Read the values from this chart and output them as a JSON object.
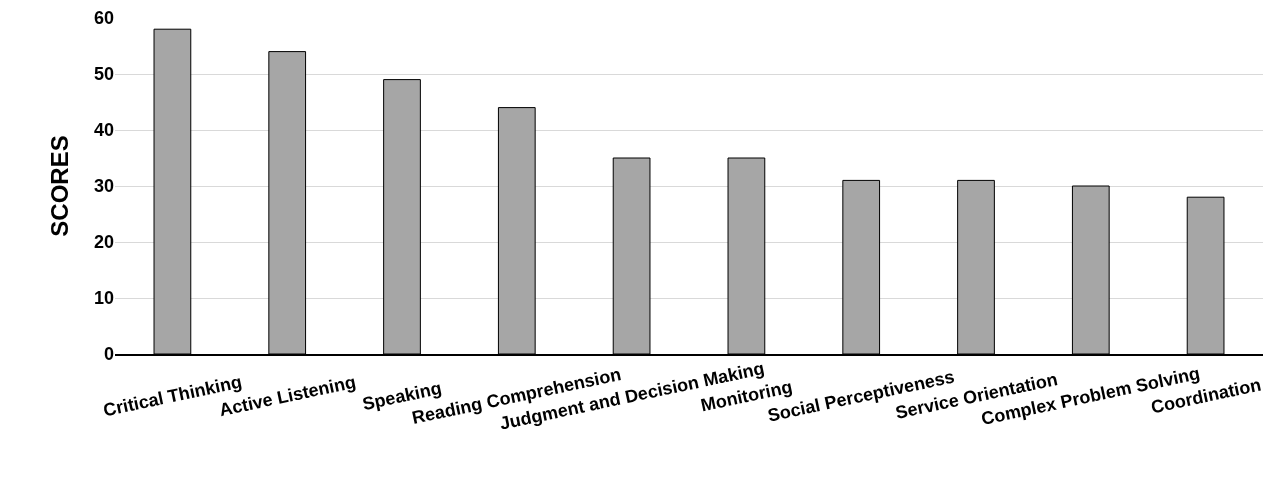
{
  "chart_data": {
    "type": "bar",
    "ylabel": "SCORES",
    "categories": [
      "Critical Thinking",
      "Active Listening",
      "Speaking",
      "Reading Comprehension",
      "Judgment and Decision Making",
      "Monitoring",
      "Social Perceptiveness",
      "Service Orientation",
      "Complex Problem Solving",
      "Coordination"
    ],
    "values": [
      58,
      54,
      49,
      44,
      35,
      35,
      31,
      31,
      30,
      28
    ],
    "color": "#a6a6a6",
    "ylim": [
      0,
      60
    ],
    "yticks": [
      0,
      10,
      20,
      30,
      40,
      50,
      60
    ],
    "grid": "y"
  }
}
